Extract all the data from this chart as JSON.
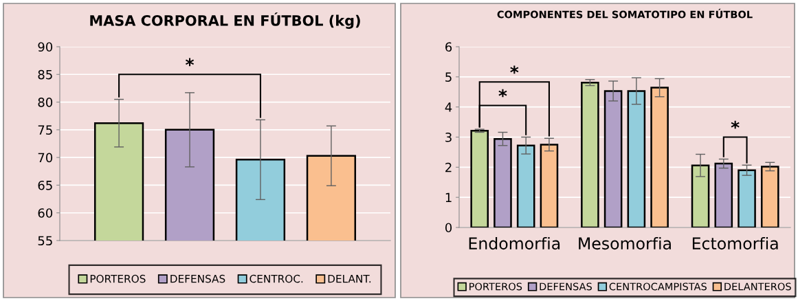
{
  "chart_data": [
    {
      "type": "bar",
      "title": "MASA CORPORAL EN FÚTBOL (kg)",
      "categories": [
        null
      ],
      "series": [
        {
          "name": "PORTEROS",
          "color": "#c4d79b",
          "values": [
            76.2
          ],
          "errors": [
            4.3
          ]
        },
        {
          "name": "DEFENSAS",
          "color": "#b1a0c7",
          "values": [
            75.0
          ],
          "errors": [
            6.7
          ]
        },
        {
          "name": "CENTROC.",
          "color": "#92cddc",
          "values": [
            69.6
          ],
          "errors": [
            7.2
          ]
        },
        {
          "name": "DELANT.",
          "color": "#fabf8f",
          "values": [
            70.3
          ],
          "errors": [
            5.4
          ]
        }
      ],
      "ylim": [
        55,
        90
      ],
      "yticks": [
        55,
        60,
        65,
        70,
        75,
        80,
        85,
        90
      ],
      "grid": "y",
      "legend": "bottom",
      "annotations": [
        "*"
      ]
    },
    {
      "type": "bar",
      "title": "COMPONENTES DEL SOMATOTIPO EN FÚTBOL",
      "categories": [
        "Endomorfia",
        "Mesomorfia",
        "Ectomorfia"
      ],
      "series": [
        {
          "name": "PORTEROS",
          "color": "#c4d79b",
          "values": [
            3.21,
            4.81,
            2.06
          ],
          "errors": [
            0.05,
            0.1,
            0.37
          ]
        },
        {
          "name": "DEFENSAS",
          "color": "#b1a0c7",
          "values": [
            2.94,
            4.53,
            2.12
          ],
          "errors": [
            0.22,
            0.33,
            0.15
          ]
        },
        {
          "name": "CENTROCAMPISTAS",
          "color": "#92cddc",
          "values": [
            2.72,
            4.53,
            1.9
          ],
          "errors": [
            0.28,
            0.44,
            0.17
          ]
        },
        {
          "name": "DELANTEROS",
          "color": "#fabf8f",
          "values": [
            2.75,
            4.64,
            2.02
          ],
          "errors": [
            0.21,
            0.3,
            0.14
          ]
        }
      ],
      "ylim": [
        0,
        6
      ],
      "yticks": [
        0,
        1,
        2,
        3,
        4,
        5,
        6
      ],
      "grid": "y",
      "legend": "bottom",
      "annotations": [
        "*",
        "*",
        "*"
      ]
    }
  ]
}
